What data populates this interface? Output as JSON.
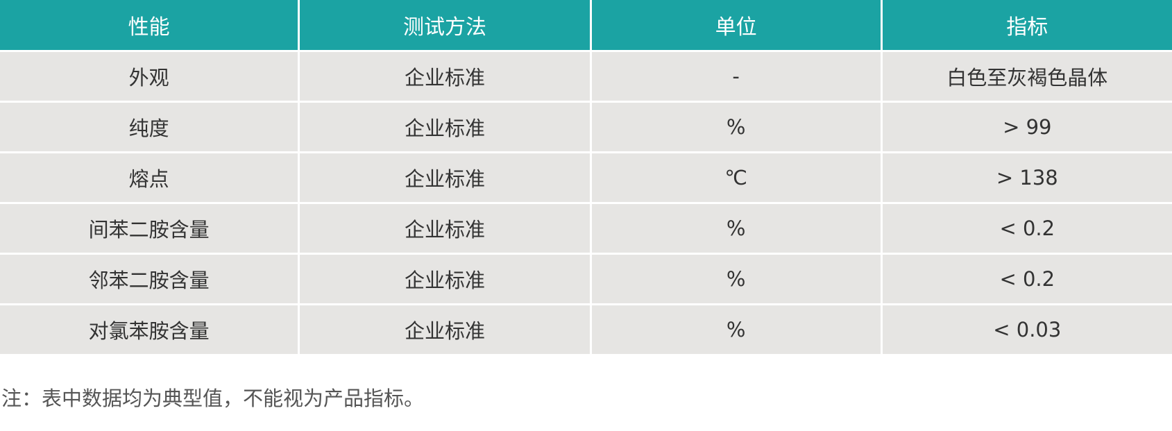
{
  "table": {
    "headers": [
      "性能",
      "测试方法",
      "单位",
      "指标"
    ],
    "rows": [
      [
        "外观",
        "企业标准",
        "-",
        "白色至灰褐色晶体"
      ],
      [
        "纯度",
        "企业标准",
        "%",
        "> 99"
      ],
      [
        "熔点",
        "企业标准",
        "℃",
        "> 138"
      ],
      [
        "间苯二胺含量",
        "企业标准",
        "%",
        "< 0.2"
      ],
      [
        "邻苯二胺含量",
        "企业标准",
        "%",
        "< 0.2"
      ],
      [
        "对氯苯胺含量",
        "企业标准",
        "%",
        "< 0.03"
      ]
    ]
  },
  "note": "注：表中数据均为典型值，不能视为产品指标。",
  "colors": {
    "header_bg": "#1ba3a3",
    "row_bg": "#e6e5e3"
  }
}
